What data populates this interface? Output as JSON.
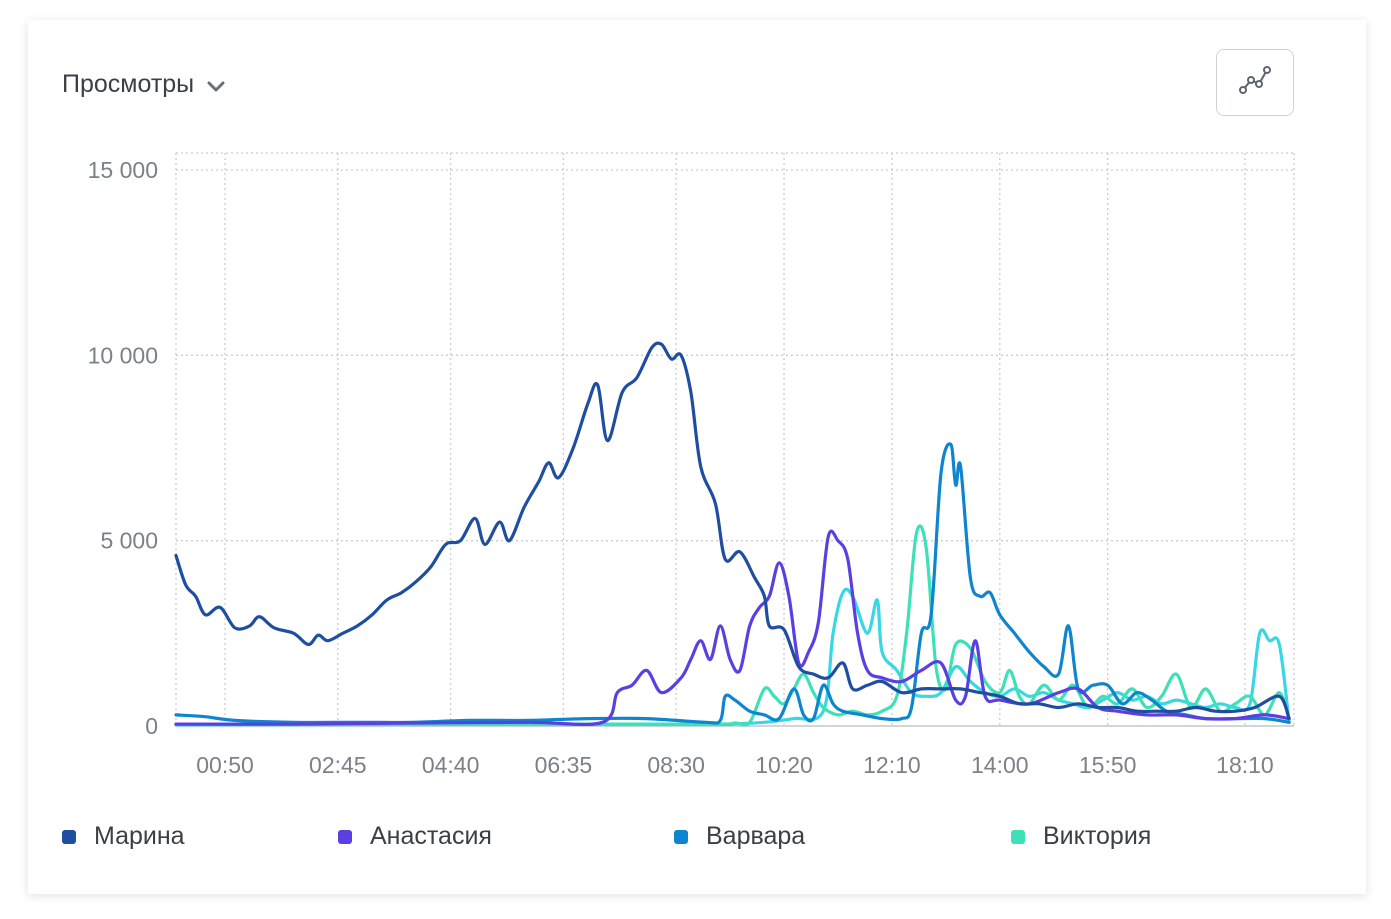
{
  "header": {
    "metric_label": "Просмотры",
    "metric_chevron_icon": "chevron-down-icon",
    "chart_type_icon": "line-chart-icon"
  },
  "chart_data": {
    "type": "line",
    "title": "",
    "xlabel": "",
    "ylabel": "",
    "ylim": [
      0,
      15000
    ],
    "yticks": [
      0,
      5000,
      10000,
      15000
    ],
    "ytick_labels": [
      "0",
      "5 000",
      "10 000",
      "15 000"
    ],
    "xlim": [
      "00:00",
      "19:00"
    ],
    "xticks": [
      "00:50",
      "02:45",
      "04:40",
      "06:35",
      "08:30",
      "10:20",
      "12:10",
      "14:00",
      "15:50",
      "18:10"
    ],
    "grid": true,
    "legend_position": "bottom",
    "series": [
      {
        "name": "Марина",
        "color": "#1f4ea1",
        "points": [
          [
            "00:00",
            4600
          ],
          [
            "00:10",
            3800
          ],
          [
            "00:20",
            3500
          ],
          [
            "00:30",
            3000
          ],
          [
            "00:45",
            3200
          ],
          [
            "01:00",
            2650
          ],
          [
            "01:15",
            2700
          ],
          [
            "01:25",
            2950
          ],
          [
            "01:40",
            2650
          ],
          [
            "02:00",
            2500
          ],
          [
            "02:15",
            2200
          ],
          [
            "02:25",
            2450
          ],
          [
            "02:35",
            2300
          ],
          [
            "02:50",
            2500
          ],
          [
            "03:05",
            2700
          ],
          [
            "03:20",
            3000
          ],
          [
            "03:35",
            3400
          ],
          [
            "03:50",
            3600
          ],
          [
            "04:05",
            3900
          ],
          [
            "04:20",
            4300
          ],
          [
            "04:35",
            4900
          ],
          [
            "04:50",
            5000
          ],
          [
            "05:05",
            5600
          ],
          [
            "05:15",
            4900
          ],
          [
            "05:30",
            5500
          ],
          [
            "05:40",
            5000
          ],
          [
            "05:55",
            5900
          ],
          [
            "06:10",
            6600
          ],
          [
            "06:20",
            7100
          ],
          [
            "06:30",
            6700
          ],
          [
            "06:45",
            7500
          ],
          [
            "07:00",
            8700
          ],
          [
            "07:10",
            9200
          ],
          [
            "07:20",
            7700
          ],
          [
            "07:35",
            9000
          ],
          [
            "07:50",
            9400
          ],
          [
            "08:05",
            10200
          ],
          [
            "08:15",
            10300
          ],
          [
            "08:25",
            9900
          ],
          [
            "08:35",
            10000
          ],
          [
            "08:45",
            9000
          ],
          [
            "08:55",
            7000
          ],
          [
            "09:10",
            6000
          ],
          [
            "09:20",
            4500
          ],
          [
            "09:35",
            4700
          ],
          [
            "09:50",
            4000
          ],
          [
            "10:00",
            3500
          ],
          [
            "10:05",
            2700
          ],
          [
            "10:20",
            2600
          ],
          [
            "10:35",
            1600
          ],
          [
            "10:50",
            1400
          ],
          [
            "11:05",
            1300
          ],
          [
            "11:20",
            1700
          ],
          [
            "11:30",
            1000
          ],
          [
            "11:45",
            1100
          ],
          [
            "12:00",
            1200
          ],
          [
            "12:20",
            900
          ],
          [
            "12:40",
            1000
          ],
          [
            "13:00",
            1000
          ],
          [
            "13:20",
            1000
          ],
          [
            "13:40",
            900
          ],
          [
            "14:00",
            800
          ],
          [
            "14:20",
            600
          ],
          [
            "14:40",
            600
          ],
          [
            "15:00",
            500
          ],
          [
            "15:20",
            600
          ],
          [
            "15:40",
            500
          ],
          [
            "16:00",
            500
          ],
          [
            "16:20",
            400
          ],
          [
            "16:40",
            400
          ],
          [
            "17:00",
            400
          ],
          [
            "17:20",
            500
          ],
          [
            "17:40",
            400
          ],
          [
            "18:00",
            400
          ],
          [
            "18:20",
            500
          ],
          [
            "18:45",
            800
          ],
          [
            "18:55",
            200
          ]
        ]
      },
      {
        "name": "Анастасия",
        "color": "#5b3fe0",
        "points": [
          [
            "00:00",
            50
          ],
          [
            "02:00",
            50
          ],
          [
            "04:00",
            80
          ],
          [
            "06:00",
            100
          ],
          [
            "07:15",
            100
          ],
          [
            "07:30",
            900
          ],
          [
            "07:45",
            1100
          ],
          [
            "08:00",
            1500
          ],
          [
            "08:15",
            900
          ],
          [
            "08:35",
            1300
          ],
          [
            "08:45",
            1800
          ],
          [
            "08:55",
            2300
          ],
          [
            "09:05",
            1800
          ],
          [
            "09:15",
            2700
          ],
          [
            "09:25",
            1800
          ],
          [
            "09:35",
            1500
          ],
          [
            "09:45",
            2700
          ],
          [
            "09:55",
            3200
          ],
          [
            "10:05",
            3500
          ],
          [
            "10:15",
            4400
          ],
          [
            "10:25",
            3500
          ],
          [
            "10:35",
            1700
          ],
          [
            "10:45",
            2000
          ],
          [
            "10:55",
            2800
          ],
          [
            "11:05",
            5100
          ],
          [
            "11:15",
            5000
          ],
          [
            "11:25",
            4500
          ],
          [
            "11:35",
            2500
          ],
          [
            "11:45",
            1500
          ],
          [
            "12:00",
            1300
          ],
          [
            "12:20",
            1200
          ],
          [
            "12:40",
            1500
          ],
          [
            "13:00",
            1700
          ],
          [
            "13:15",
            700
          ],
          [
            "13:25",
            800
          ],
          [
            "13:35",
            2300
          ],
          [
            "13:45",
            800
          ],
          [
            "14:00",
            700
          ],
          [
            "14:30",
            600
          ],
          [
            "15:00",
            900
          ],
          [
            "15:20",
            1000
          ],
          [
            "15:40",
            500
          ],
          [
            "16:00",
            400
          ],
          [
            "16:30",
            300
          ],
          [
            "17:00",
            300
          ],
          [
            "17:30",
            200
          ],
          [
            "18:00",
            200
          ],
          [
            "18:30",
            300
          ],
          [
            "18:55",
            200
          ]
        ]
      },
      {
        "name": "Варвара",
        "color": "#0f85cf",
        "points": [
          [
            "00:00",
            300
          ],
          [
            "00:30",
            250
          ],
          [
            "01:00",
            150
          ],
          [
            "02:00",
            100
          ],
          [
            "03:00",
            100
          ],
          [
            "04:00",
            100
          ],
          [
            "05:00",
            150
          ],
          [
            "06:00",
            150
          ],
          [
            "07:00",
            200
          ],
          [
            "08:00",
            200
          ],
          [
            "09:00",
            100
          ],
          [
            "09:15",
            150
          ],
          [
            "09:20",
            800
          ],
          [
            "09:30",
            700
          ],
          [
            "09:45",
            400
          ],
          [
            "10:00",
            300
          ],
          [
            "10:15",
            200
          ],
          [
            "10:30",
            1000
          ],
          [
            "10:40",
            300
          ],
          [
            "10:50",
            200
          ],
          [
            "11:00",
            1100
          ],
          [
            "11:10",
            600
          ],
          [
            "11:20",
            400
          ],
          [
            "11:40",
            300
          ],
          [
            "12:00",
            200
          ],
          [
            "12:20",
            200
          ],
          [
            "12:30",
            500
          ],
          [
            "12:40",
            2500
          ],
          [
            "12:50",
            3000
          ],
          [
            "13:00",
            6800
          ],
          [
            "13:10",
            7600
          ],
          [
            "13:15",
            6500
          ],
          [
            "13:20",
            7000
          ],
          [
            "13:30",
            4000
          ],
          [
            "13:40",
            3500
          ],
          [
            "13:50",
            3600
          ],
          [
            "14:00",
            3000
          ],
          [
            "14:15",
            2500
          ],
          [
            "14:30",
            2000
          ],
          [
            "14:45",
            1600
          ],
          [
            "15:00",
            1400
          ],
          [
            "15:10",
            2700
          ],
          [
            "15:20",
            1000
          ],
          [
            "15:35",
            1100
          ],
          [
            "15:50",
            1100
          ],
          [
            "16:05",
            600
          ],
          [
            "16:20",
            900
          ],
          [
            "16:35",
            700
          ],
          [
            "16:50",
            400
          ],
          [
            "17:10",
            300
          ],
          [
            "17:30",
            200
          ],
          [
            "18:00",
            200
          ],
          [
            "18:30",
            200
          ],
          [
            "18:55",
            100
          ]
        ]
      },
      {
        "name": "Виктория",
        "color": "#3ee0b8",
        "points": [
          [
            "00:00",
            50
          ],
          [
            "05:00",
            50
          ],
          [
            "09:00",
            50
          ],
          [
            "09:30",
            80
          ],
          [
            "09:45",
            100
          ],
          [
            "10:00",
            1000
          ],
          [
            "10:10",
            800
          ],
          [
            "10:20",
            600
          ],
          [
            "10:30",
            1000
          ],
          [
            "10:40",
            1400
          ],
          [
            "10:50",
            900
          ],
          [
            "11:00",
            500
          ],
          [
            "11:15",
            300
          ],
          [
            "11:30",
            400
          ],
          [
            "11:45",
            300
          ],
          [
            "12:00",
            400
          ],
          [
            "12:15",
            800
          ],
          [
            "12:25",
            2500
          ],
          [
            "12:35",
            5200
          ],
          [
            "12:45",
            4800
          ],
          [
            "12:55",
            1600
          ],
          [
            "13:05",
            1000
          ],
          [
            "13:15",
            2200
          ],
          [
            "13:30",
            2100
          ],
          [
            "13:45",
            1200
          ],
          [
            "14:00",
            900
          ],
          [
            "14:10",
            1500
          ],
          [
            "14:20",
            800
          ],
          [
            "14:30",
            600
          ],
          [
            "14:45",
            1100
          ],
          [
            "15:00",
            700
          ],
          [
            "15:15",
            1100
          ],
          [
            "15:30",
            500
          ],
          [
            "15:45",
            800
          ],
          [
            "16:00",
            600
          ],
          [
            "16:15",
            1000
          ],
          [
            "16:30",
            500
          ],
          [
            "16:45",
            800
          ],
          [
            "17:00",
            1400
          ],
          [
            "17:15",
            500
          ],
          [
            "17:30",
            1000
          ],
          [
            "17:45",
            400
          ],
          [
            "18:00",
            600
          ],
          [
            "18:15",
            800
          ],
          [
            "18:30",
            300
          ],
          [
            "18:45",
            900
          ],
          [
            "18:55",
            200
          ]
        ]
      },
      {
        "name": "",
        "color": "#38d7e6",
        "points": [
          [
            "00:00",
            30
          ],
          [
            "05:00",
            40
          ],
          [
            "09:00",
            40
          ],
          [
            "09:30",
            60
          ],
          [
            "10:00",
            100
          ],
          [
            "10:30",
            200
          ],
          [
            "11:00",
            400
          ],
          [
            "11:10",
            2500
          ],
          [
            "11:20",
            3600
          ],
          [
            "11:30",
            3500
          ],
          [
            "11:45",
            2500
          ],
          [
            "11:55",
            3400
          ],
          [
            "12:00",
            2000
          ],
          [
            "12:15",
            1500
          ],
          [
            "12:30",
            900
          ],
          [
            "12:45",
            800
          ],
          [
            "13:00",
            900
          ],
          [
            "13:15",
            1600
          ],
          [
            "13:30",
            1200
          ],
          [
            "13:45",
            900
          ],
          [
            "14:00",
            800
          ],
          [
            "14:15",
            1000
          ],
          [
            "14:30",
            800
          ],
          [
            "14:45",
            900
          ],
          [
            "15:00",
            700
          ],
          [
            "15:15",
            600
          ],
          [
            "15:30",
            500
          ],
          [
            "15:45",
            700
          ],
          [
            "16:00",
            900
          ],
          [
            "16:15",
            700
          ],
          [
            "16:30",
            800
          ],
          [
            "16:45",
            600
          ],
          [
            "17:00",
            700
          ],
          [
            "17:15",
            600
          ],
          [
            "17:30",
            500
          ],
          [
            "17:45",
            600
          ],
          [
            "18:00",
            500
          ],
          [
            "18:15",
            600
          ],
          [
            "18:25",
            2500
          ],
          [
            "18:35",
            2300
          ],
          [
            "18:45",
            2200
          ],
          [
            "18:55",
            100
          ]
        ]
      }
    ]
  }
}
